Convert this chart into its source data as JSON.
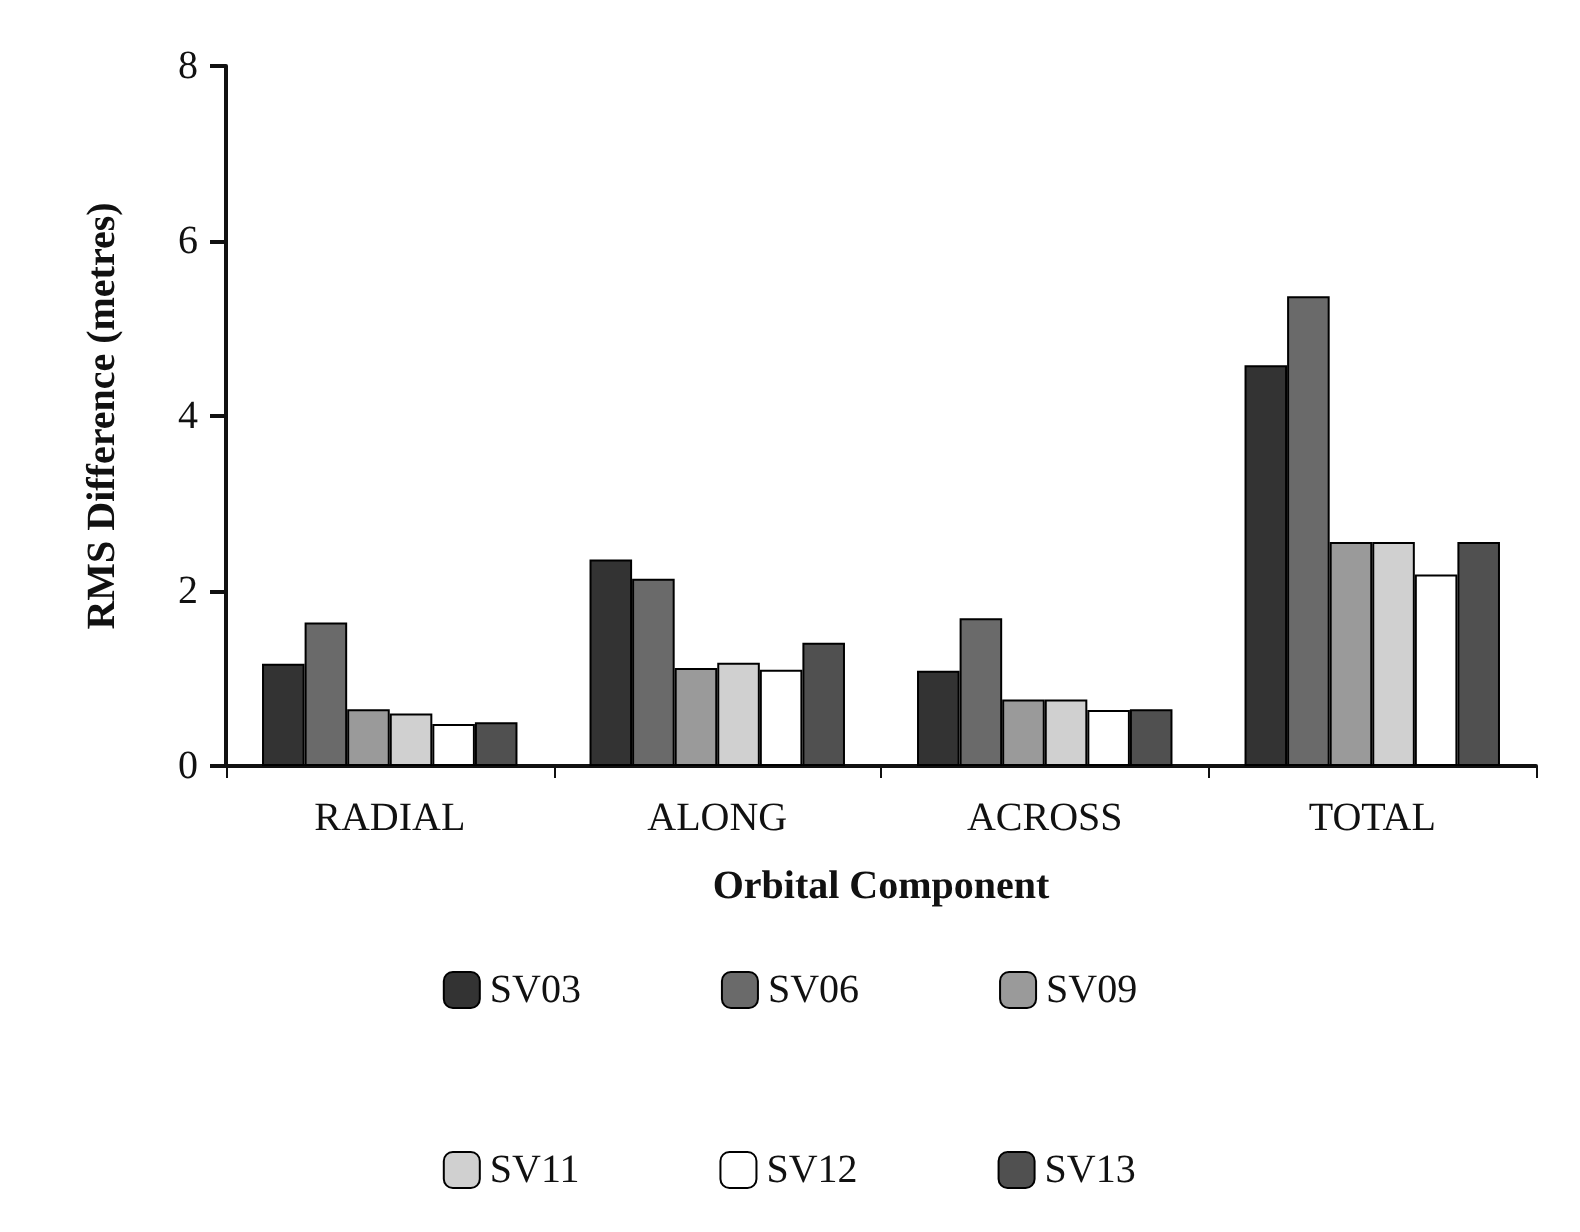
{
  "chart_data": {
    "type": "bar",
    "xlabel": "Orbital Component",
    "ylabel": "RMS Difference (metres)",
    "categories": [
      "RADIAL",
      "ALONG",
      "ACROSS",
      "TOTAL"
    ],
    "series": [
      {
        "name": "SV03",
        "color": "#333333",
        "values": [
          1.17,
          2.36,
          1.09,
          4.58
        ]
      },
      {
        "name": "SV06",
        "color": "#6a6a6a",
        "values": [
          1.64,
          2.14,
          1.69,
          5.37
        ]
      },
      {
        "name": "SV09",
        "color": "#9a9a9a",
        "values": [
          0.65,
          1.12,
          0.76,
          2.56
        ]
      },
      {
        "name": "SV11",
        "color": "#d0d0d0",
        "values": [
          0.6,
          1.18,
          0.76,
          2.56
        ]
      },
      {
        "name": "SV12",
        "color": "#ffffff",
        "values": [
          0.48,
          1.1,
          0.64,
          2.19
        ]
      },
      {
        "name": "SV13",
        "color": "#505050",
        "values": [
          0.5,
          1.41,
          0.65,
          2.56
        ]
      }
    ],
    "ylim": [
      0,
      8
    ],
    "yticks": [
      0,
      2,
      4,
      6,
      8
    ],
    "grid": false,
    "legend": "bottom"
  }
}
